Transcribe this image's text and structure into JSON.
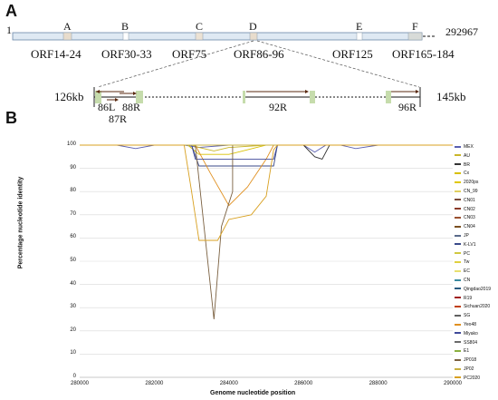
{
  "panel_a": {
    "label": "A",
    "genome_start": "1",
    "genome_end": "292967",
    "regions": [
      "A",
      "B",
      "C",
      "D",
      "E",
      "F"
    ],
    "orfs": [
      "ORF14-24",
      "ORF30-33",
      "ORF75",
      "ORF86-96",
      "ORF125",
      "ORF165-184"
    ],
    "zoom": {
      "left_label": "126kb",
      "right_label": "145kb",
      "genes": [
        "86L",
        "87R",
        "88R",
        "92R",
        "96R"
      ]
    }
  },
  "panel_b": {
    "label": "B"
  },
  "chart_data": {
    "type": "line",
    "xlabel": "Genome nucleotide position",
    "ylabel": "Percentage nucleotide identity",
    "xlim": [
      280000,
      290000
    ],
    "ylim": [
      0,
      100
    ],
    "x_ticks": [
      "280000",
      "282000",
      "284000",
      "286000",
      "288000",
      "290000"
    ],
    "y_ticks": [
      "0",
      "10",
      "20",
      "30",
      "40",
      "50",
      "60",
      "70",
      "80",
      "90",
      "100"
    ],
    "grid": true,
    "legend_position": "right",
    "series": [
      {
        "name": "MEX",
        "color": "#5a5fb0",
        "x": [
          280000,
          281000,
          281500,
          282000,
          282800,
          283200,
          284000,
          285000,
          286000,
          286300,
          286600,
          287000,
          287400,
          288000,
          289000,
          290000
        ],
        "values": [
          100,
          100,
          98.5,
          100,
          100,
          99,
          100,
          100,
          100,
          97,
          100,
          100,
          98.5,
          100,
          100,
          100
        ]
      },
      {
        "name": "AU",
        "color": "#c9b62a",
        "x": [
          280000,
          283000,
          283200,
          283600,
          284000,
          285000,
          290000
        ],
        "values": [
          100,
          100,
          99,
          97.5,
          99,
          100,
          100
        ]
      },
      {
        "name": "BR",
        "color": "#333333",
        "x": [
          280000,
          286000,
          286300,
          286500,
          286700,
          287000,
          290000
        ],
        "values": [
          100,
          100,
          95,
          94,
          100,
          100,
          100
        ]
      },
      {
        "name": "Cx",
        "color": "#d8c000",
        "x": [
          280000,
          282900,
          283200,
          284000,
          285000,
          290000
        ],
        "values": [
          100,
          100,
          96,
          96,
          100,
          100
        ]
      },
      {
        "name": "2020ps",
        "color": "#e0c800",
        "x": [
          280000,
          290000
        ],
        "values": [
          100,
          100
        ]
      },
      {
        "name": "CN_99",
        "color": "#e0d060",
        "x": [
          280000,
          290000
        ],
        "values": [
          100,
          100
        ]
      },
      {
        "name": "CN01",
        "color": "#7a4a3a",
        "x": [
          280000,
          290000
        ],
        "values": [
          100,
          100
        ]
      },
      {
        "name": "CN02",
        "color": "#8a3a28",
        "x": [
          280000,
          290000
        ],
        "values": [
          100,
          100
        ]
      },
      {
        "name": "CN03",
        "color": "#9a5030",
        "x": [
          280000,
          290000
        ],
        "values": [
          100,
          100
        ]
      },
      {
        "name": "CN04",
        "color": "#7a5020",
        "x": [
          280000,
          290000
        ],
        "values": [
          100,
          100
        ]
      },
      {
        "name": "JP",
        "color": "#5a6a8a",
        "x": [
          280000,
          290000
        ],
        "values": [
          100,
          100
        ]
      },
      {
        "name": "K-LV1",
        "color": "#3a4a8a",
        "x": [
          280000,
          283000,
          283200,
          285200,
          285300,
          290000
        ],
        "values": [
          100,
          100,
          91,
          91,
          100,
          100
        ]
      },
      {
        "name": "PC",
        "color": "#d0c840",
        "x": [
          280000,
          290000
        ],
        "values": [
          100,
          100
        ]
      },
      {
        "name": "Tw",
        "color": "#e0d040",
        "x": [
          280000,
          290000
        ],
        "values": [
          100,
          100
        ]
      },
      {
        "name": "EC",
        "color": "#e8e070",
        "x": [
          280000,
          290000
        ],
        "values": [
          100,
          100
        ]
      },
      {
        "name": "CN",
        "color": "#3a8aa0",
        "x": [
          280000,
          290000
        ],
        "values": [
          100,
          100
        ]
      },
      {
        "name": "Qingdao2019",
        "color": "#2a5a80",
        "x": [
          280000,
          290000
        ],
        "values": [
          100,
          100
        ]
      },
      {
        "name": "R19",
        "color": "#a02020",
        "x": [
          280000,
          290000
        ],
        "values": [
          100,
          100
        ]
      },
      {
        "name": "Sichuan2020",
        "color": "#c04010",
        "x": [
          280000,
          290000
        ],
        "values": [
          100,
          100
        ]
      },
      {
        "name": "SG",
        "color": "#606060",
        "x": [
          280000,
          290000
        ],
        "values": [
          100,
          100
        ]
      },
      {
        "name": "Yeo48",
        "color": "#e09020",
        "x": [
          280000,
          283100,
          283500,
          284000,
          284500,
          285000,
          285200,
          290000
        ],
        "values": [
          100,
          100,
          88,
          74,
          82,
          94,
          100,
          100
        ]
      },
      {
        "name": "Miyako",
        "color": "#404a9a",
        "x": [
          280000,
          283000,
          283100,
          285200,
          285300,
          290000
        ],
        "values": [
          100,
          100,
          94,
          94,
          100,
          100
        ]
      },
      {
        "name": "SS804",
        "color": "#6a6a6a",
        "x": [
          280000,
          290000
        ],
        "values": [
          100,
          100
        ]
      },
      {
        "name": "E1",
        "color": "#8ab040",
        "x": [
          280000,
          290000
        ],
        "values": [
          100,
          100
        ]
      },
      {
        "name": "JP018",
        "color": "#7a6040",
        "x": [
          280000,
          283100,
          283600,
          283800,
          284100,
          284100,
          285200,
          285300,
          290000
        ],
        "values": [
          100,
          100,
          25,
          65,
          80,
          100,
          100,
          100,
          100
        ]
      },
      {
        "name": "JP02",
        "color": "#c8b040",
        "x": [
          280000,
          290000
        ],
        "values": [
          100,
          100
        ]
      },
      {
        "name": "PC2020",
        "color": "#d8a020",
        "x": [
          280000,
          282800,
          283000,
          283200,
          283700,
          284000,
          284600,
          285000,
          285200,
          285300,
          290000
        ],
        "values": [
          100,
          100,
          80,
          59,
          59,
          68,
          70,
          78,
          98,
          100,
          100
        ]
      }
    ]
  }
}
